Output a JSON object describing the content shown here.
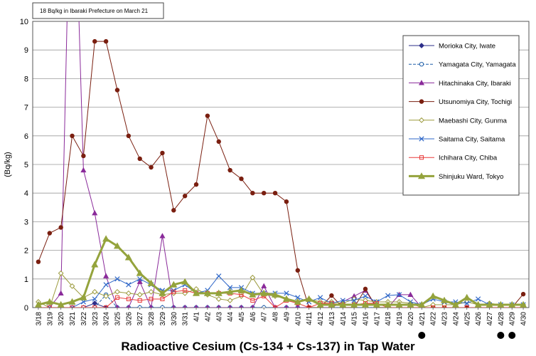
{
  "chart_data": {
    "type": "line",
    "title": "Radioactive Cesium (Cs-134 + Cs-137) in Tap Water",
    "ylabel": "(Bq/kg)",
    "xlabel": "",
    "ylim": [
      0,
      10
    ],
    "yticks": [
      0,
      1,
      2,
      3,
      4,
      5,
      6,
      7,
      8,
      9,
      10
    ],
    "grid": true,
    "legend_position": "top-right",
    "note": "18 Bq/kg in Ibaraki Prefecture on March 21",
    "categories": [
      "3/18",
      "3/19",
      "3/20",
      "3/21",
      "3/22",
      "3/23",
      "3/24",
      "3/25",
      "3/26",
      "3/27",
      "3/28",
      "3/29",
      "3/30",
      "3/31",
      "4/1",
      "4/2",
      "4/3",
      "4/4",
      "4/5",
      "4/6",
      "4/7",
      "4/8",
      "4/9",
      "4/10",
      "4/11",
      "4/12",
      "4/13",
      "4/14",
      "4/15",
      "4/16",
      "4/17",
      "4/18",
      "4/19",
      "4/20",
      "4/21",
      "4/22",
      "4/23",
      "4/24",
      "4/25",
      "4/26",
      "4/27",
      "4/28",
      "4/29",
      "4/30"
    ],
    "marked_dates": [
      "4/21",
      "4/28",
      "4/29"
    ],
    "series": [
      {
        "name": "Morioka City, Iwate",
        "color": "#2e2f8a",
        "marker": "diamond-filled",
        "dashed": false,
        "width": 1,
        "values": [
          0,
          0,
          0,
          0,
          0,
          0.15,
          0,
          0,
          0,
          0,
          0,
          0,
          0,
          0,
          0,
          0,
          0,
          0,
          0,
          0,
          0,
          0,
          0,
          0,
          0,
          0,
          0,
          0,
          0,
          0,
          0,
          0,
          0,
          0,
          0,
          0,
          0,
          0,
          0,
          0,
          0,
          0,
          0,
          0
        ]
      },
      {
        "name": "Yamagata City, Yamagata",
        "color": "#1f5fa8",
        "marker": "circle-open",
        "dashed": true,
        "width": 1,
        "values": [
          0,
          0,
          0,
          0,
          0,
          0,
          0.45,
          0,
          0,
          0,
          0,
          0,
          0,
          0,
          0,
          0,
          0,
          0,
          0,
          0,
          0,
          0,
          0,
          0,
          0,
          0,
          0,
          0,
          0,
          0,
          0,
          0,
          0,
          0,
          0,
          0,
          0,
          0,
          0,
          0,
          0,
          0,
          0,
          0
        ]
      },
      {
        "name": "Hitachinaka City, Ibaraki",
        "color": "#8a2a9a",
        "marker": "triangle-filled",
        "dashed": false,
        "width": 1,
        "values": [
          0,
          0,
          0.5,
          18,
          4.8,
          3.3,
          1.1,
          0,
          0,
          0.9,
          0,
          2.5,
          0,
          0,
          0,
          0,
          0,
          0,
          0,
          0,
          0.75,
          0,
          0,
          0,
          0,
          0,
          0,
          0.2,
          0.4,
          0.6,
          0,
          0,
          0.45,
          0.45,
          0,
          0,
          0,
          0,
          0,
          0,
          0,
          0,
          0,
          0
        ]
      },
      {
        "name": "Utsunomiya City, Tochigi",
        "color": "#7a1f10",
        "marker": "circle-filled",
        "dashed": false,
        "width": 1,
        "values": [
          1.6,
          2.6,
          2.8,
          6.0,
          5.3,
          9.3,
          9.3,
          7.6,
          6.0,
          5.2,
          4.9,
          5.4,
          3.4,
          3.9,
          4.3,
          6.7,
          5.8,
          4.8,
          4.5,
          4.0,
          4.0,
          4.0,
          3.7,
          1.3,
          0,
          0,
          0.42,
          0,
          0,
          0.65,
          0,
          0,
          0,
          0,
          0,
          0,
          0,
          0,
          0,
          0,
          0,
          0,
          0,
          0.47
        ]
      },
      {
        "name": "Maebashi City, Gunma",
        "color": "#9b9a3c",
        "marker": "diamond-open",
        "dashed": false,
        "width": 1,
        "values": [
          0.2,
          0,
          1.2,
          0.75,
          0.35,
          0.55,
          0.4,
          0.55,
          0.5,
          0.45,
          0.55,
          0.45,
          0.5,
          0.5,
          0.65,
          0.45,
          0.3,
          0.25,
          0.4,
          1.05,
          0.45,
          0.4,
          0.3,
          0.2,
          0.3,
          0.2,
          0.2,
          0.15,
          0.3,
          0.25,
          0.2,
          0.2,
          0.2,
          0.15,
          0,
          0.1,
          0.1,
          0.1,
          0.2,
          0.1,
          0.15,
          0.1,
          0.1,
          0.1
        ]
      },
      {
        "name": "Saitama City, Saitama",
        "color": "#2f67c8",
        "marker": "x",
        "dashed": false,
        "width": 1,
        "values": [
          0,
          0,
          0,
          0,
          0.2,
          0.3,
          0.8,
          1.0,
          0.8,
          1.0,
          0.8,
          0.6,
          0.6,
          0.8,
          0.5,
          0.6,
          1.1,
          0.7,
          0.7,
          0.5,
          0.5,
          0.5,
          0.5,
          0.35,
          0.2,
          0.35,
          0.15,
          0.25,
          0.25,
          0.4,
          0.2,
          0.42,
          0.45,
          0.2,
          0.1,
          0.3,
          0.2,
          0.2,
          0.15,
          0.3,
          0.1,
          0.1,
          0.1,
          0.1
        ]
      },
      {
        "name": "Ichihara City, Chiba",
        "color": "#e83a3a",
        "marker": "square-open",
        "dashed": false,
        "width": 1,
        "values": [
          0,
          0,
          0,
          0,
          0,
          0,
          0,
          0.35,
          0.3,
          0.25,
          0.3,
          0.3,
          0.55,
          0.6,
          0.5,
          0.5,
          0.5,
          0.5,
          0.45,
          0.25,
          0.4,
          0,
          0.25,
          0.15,
          0,
          0.15,
          0.15,
          0.1,
          0.1,
          0.15,
          0.15,
          0,
          0,
          0,
          0,
          0,
          0,
          0,
          0,
          0,
          0,
          0,
          0,
          0
        ]
      },
      {
        "name": "Shinjuku Ward, Tokyo",
        "color": "#94a33c",
        "marker": "triangle-filled",
        "dashed": false,
        "width": 3,
        "values": [
          0.1,
          0.2,
          0.1,
          0.2,
          0.35,
          1.5,
          2.4,
          2.15,
          1.75,
          1.2,
          0.85,
          0.5,
          0.8,
          0.9,
          0.5,
          0.5,
          0.5,
          0.55,
          0.6,
          0.45,
          0.5,
          0.45,
          0.3,
          0.2,
          0.3,
          0.1,
          0.1,
          0.1,
          0.1,
          0.1,
          0.1,
          0.1,
          0.1,
          0.1,
          0.1,
          0.4,
          0.25,
          0.1,
          0.35,
          0.1,
          0.1,
          0.1,
          0.1,
          0.1
        ]
      }
    ]
  }
}
